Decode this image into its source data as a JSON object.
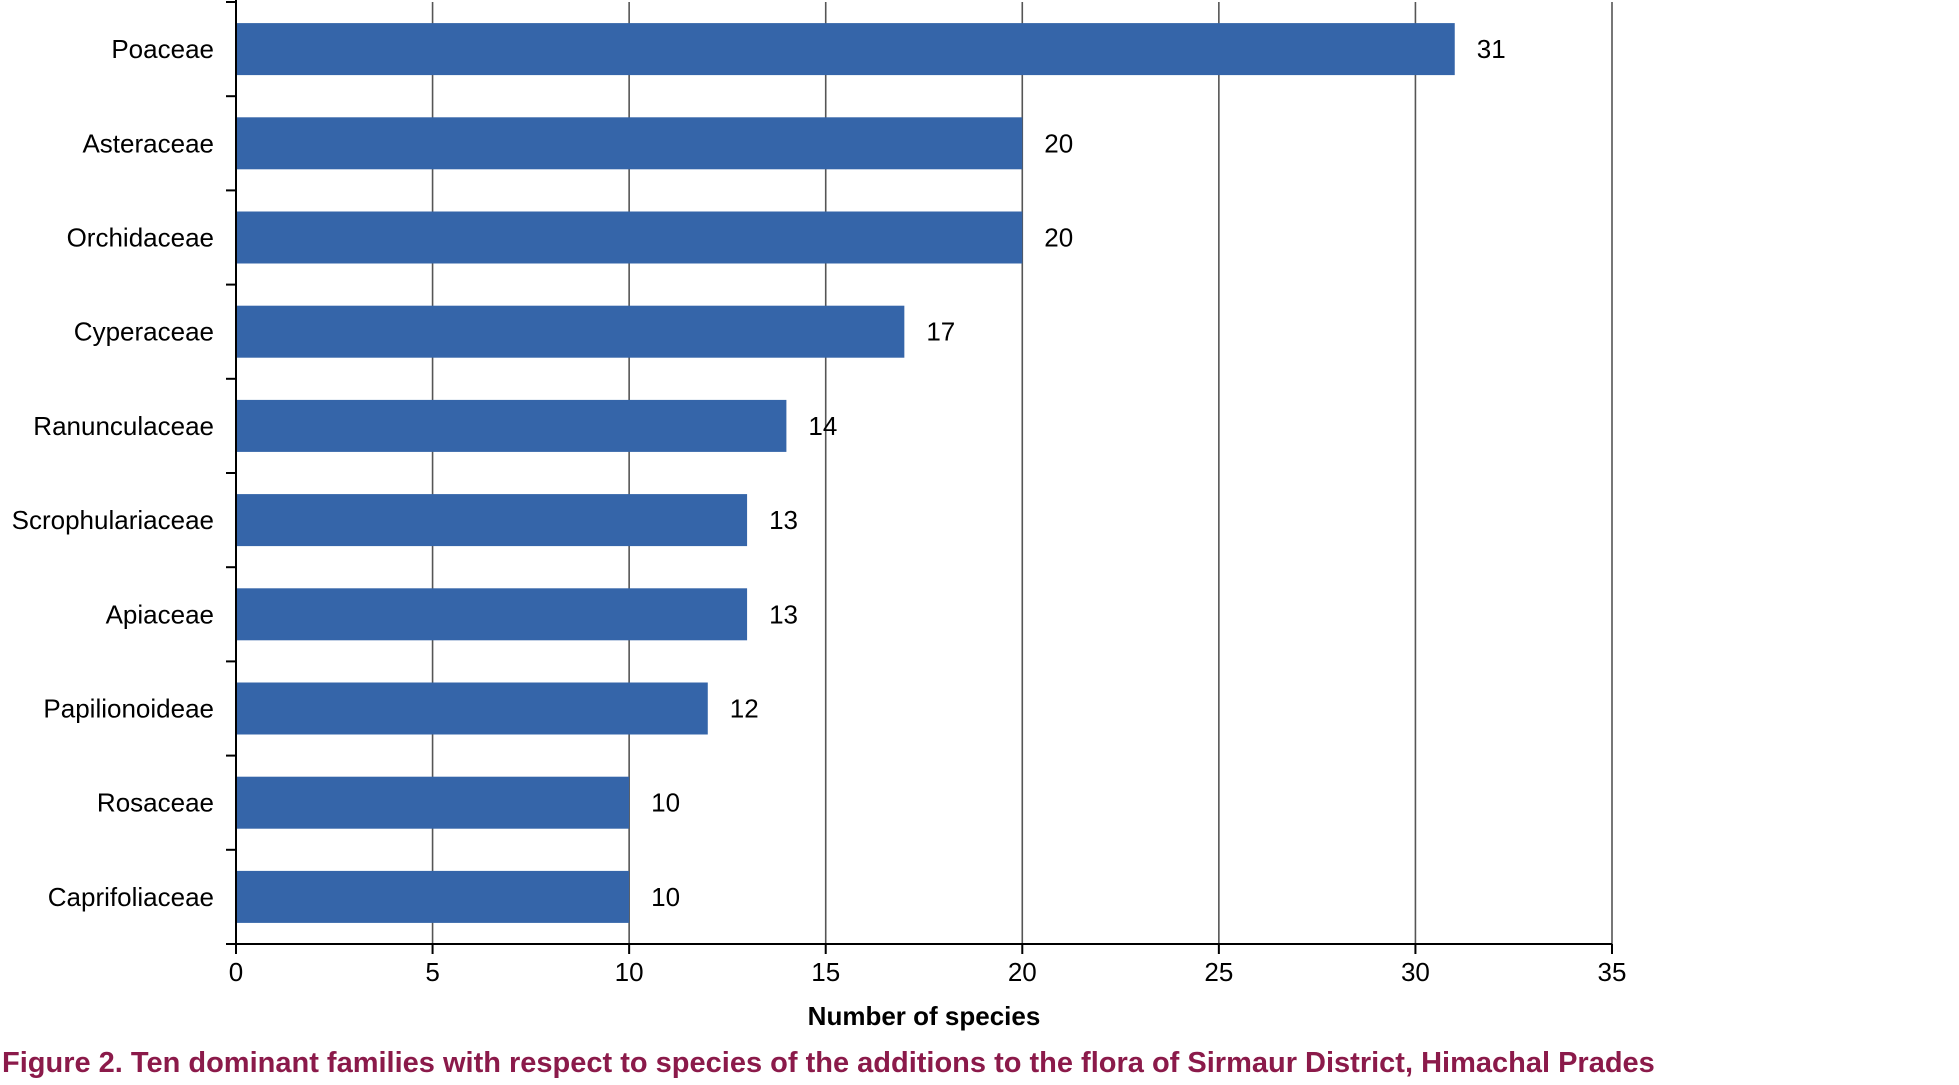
{
  "chart_data": {
    "type": "bar",
    "orientation": "horizontal",
    "categories": [
      "Poaceae",
      "Asteraceae",
      "Orchidaceae",
      "Cyperaceae",
      "Ranunculaceae",
      "Scrophulariaceae",
      "Apiaceae",
      "Papilionoideae",
      "Rosaceae",
      "Caprifoliaceae"
    ],
    "values": [
      31,
      20,
      20,
      17,
      14,
      13,
      13,
      12,
      10,
      10
    ],
    "xlabel": "Number of species",
    "ylabel": "",
    "xlim": [
      0,
      35
    ],
    "xticks": [
      0,
      5,
      10,
      15,
      20,
      25,
      30,
      35
    ],
    "grid": "vertical",
    "data_labels": true,
    "bar_color": "#3565A9",
    "grid_color": "#000000"
  },
  "caption": {
    "text": "Figure 2. Ten dominant families with respect to species of the additions to the flora of Sirmaur District, Himachal Prades",
    "color": "#8B1A4A"
  }
}
